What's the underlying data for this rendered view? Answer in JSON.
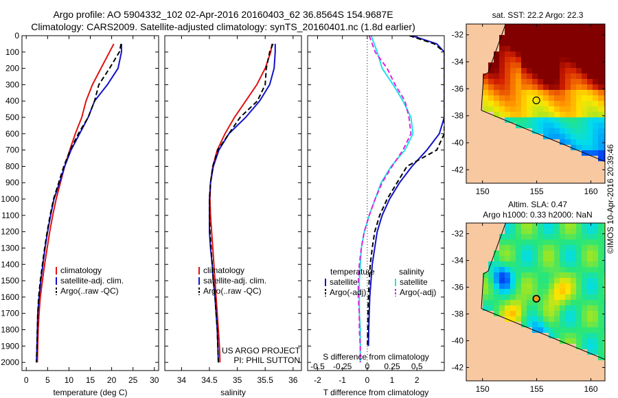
{
  "header": {
    "title_line1": "Argo profile: AO 5904332_102 02-Apr-2016 20160403_62 36.8564S 154.9687E",
    "title_line2": "Climatology: CARS2009. Satellite-adjusted climatology: synTS_20160401.nc (1.8d earlier)"
  },
  "credit": "©IMOS 10-Apr-2016 20:39:46",
  "colors": {
    "climatology": "#e01010",
    "satellite": "#1010c8",
    "argo": "#000000",
    "sal_satellite": "#20e0e8",
    "sal_argo": "#e020e0",
    "land": "#f8c8a0"
  },
  "chart_data": [
    {
      "type": "line",
      "name": "temperature-profile",
      "xlabel": "temperature (deg C)",
      "ylabel": "",
      "xlim": [
        -1,
        31
      ],
      "xticks": [
        0,
        5,
        10,
        15,
        20,
        25,
        30
      ],
      "ylim": [
        2050,
        0
      ],
      "yticks": [
        0,
        100,
        200,
        300,
        400,
        500,
        600,
        700,
        800,
        900,
        1000,
        1100,
        1200,
        1300,
        1400,
        1500,
        1600,
        1700,
        1800,
        1900,
        2000
      ],
      "legend": [
        "climatology",
        "satellite-adj. clim.",
        "Argo(..raw -QC)"
      ],
      "series": [
        {
          "name": "climatology",
          "style": "solid",
          "color": "#e01010",
          "x": [
            20.5,
            19.5,
            17.5,
            15.5,
            14.0,
            13.0,
            11.5,
            10.2,
            9.0,
            8.0,
            7.0,
            6.2,
            5.5,
            4.9,
            4.3,
            3.8,
            3.3,
            3.0,
            2.8,
            2.7,
            2.6
          ],
          "y": [
            50,
            100,
            200,
            300,
            400,
            500,
            600,
            700,
            800,
            900,
            1000,
            1100,
            1200,
            1300,
            1400,
            1500,
            1600,
            1700,
            1800,
            1900,
            2000
          ]
        },
        {
          "name": "satellite-adj. clim.",
          "style": "solid",
          "color": "#1010c8",
          "x": [
            22.3,
            22.3,
            21.5,
            19.0,
            16.0,
            14.5,
            12.5,
            10.5,
            9.0,
            7.8,
            6.5,
            5.7,
            5.0,
            4.4,
            3.9,
            3.4,
            3.0,
            2.7,
            2.6,
            2.5,
            2.4
          ],
          "y": [
            50,
            100,
            200,
            300,
            400,
            500,
            600,
            700,
            800,
            900,
            1000,
            1100,
            1200,
            1300,
            1400,
            1500,
            1600,
            1700,
            1800,
            1900,
            2000
          ]
        },
        {
          "name": "Argo(..raw -QC)",
          "style": "dashed",
          "color": "#000000",
          "x": [
            22.2,
            21.8,
            19.5,
            17.0,
            16.0,
            14.5,
            12.2,
            10.3,
            8.8,
            7.6,
            6.4,
            5.6,
            4.9,
            4.3,
            3.8,
            3.3,
            2.9,
            2.7,
            2.6,
            2.5,
            2.4
          ],
          "y": [
            50,
            100,
            200,
            300,
            400,
            500,
            600,
            700,
            800,
            900,
            1000,
            1100,
            1200,
            1300,
            1400,
            1500,
            1600,
            1700,
            1800,
            1900,
            2000
          ]
        }
      ]
    },
    {
      "type": "line",
      "name": "salinity-profile",
      "xlabel": "salinity",
      "xlim": [
        33.7,
        36.15
      ],
      "xticks": [
        34,
        34.5,
        35,
        35.5,
        36
      ],
      "ylim": [
        2050,
        0
      ],
      "legend": [
        "climatology",
        "satellite-adj. clim.",
        "Argo(..raw -QC)"
      ],
      "annotation": [
        "US ARGO PROJECT",
        "PI: PHIL SUTTON"
      ],
      "series": [
        {
          "name": "climatology",
          "style": "solid",
          "color": "#e01010",
          "x": [
            35.62,
            35.6,
            35.5,
            35.35,
            35.15,
            34.95,
            34.78,
            34.64,
            34.56,
            34.52,
            34.51,
            34.52,
            34.54,
            34.56,
            34.58,
            34.6,
            34.62,
            34.64,
            34.66,
            34.68,
            34.69
          ],
          "y": [
            50,
            100,
            200,
            300,
            400,
            500,
            600,
            700,
            800,
            900,
            1000,
            1100,
            1200,
            1300,
            1400,
            1500,
            1600,
            1700,
            1800,
            1900,
            2000
          ]
        },
        {
          "name": "satellite-adj. clim.",
          "style": "solid",
          "color": "#1010c8",
          "x": [
            35.68,
            35.68,
            35.66,
            35.58,
            35.4,
            35.15,
            34.85,
            34.67,
            34.57,
            34.52,
            34.5,
            34.5,
            34.5,
            34.52,
            34.55,
            34.57,
            34.6,
            34.62,
            34.64,
            34.65,
            34.66
          ],
          "y": [
            50,
            100,
            200,
            300,
            400,
            500,
            600,
            700,
            800,
            900,
            1000,
            1100,
            1200,
            1300,
            1400,
            1500,
            1600,
            1700,
            1800,
            1900,
            2000
          ]
        },
        {
          "name": "Argo(..raw -QC)",
          "style": "dashed",
          "color": "#000000",
          "x": [
            35.64,
            35.58,
            35.52,
            35.5,
            35.36,
            35.05,
            34.85,
            34.65,
            34.56,
            34.52,
            34.5,
            34.5,
            34.51,
            34.53,
            34.55,
            34.57,
            34.6,
            34.62,
            34.64,
            34.65,
            34.66
          ],
          "y": [
            50,
            100,
            200,
            300,
            400,
            500,
            600,
            700,
            800,
            900,
            1000,
            1100,
            1200,
            1300,
            1400,
            1500,
            1600,
            1700,
            1800,
            1900,
            2000
          ]
        }
      ]
    },
    {
      "type": "line",
      "name": "difference-profile",
      "xlabel": "T difference from climatology",
      "xlabel_top": "S difference from climatology",
      "xlim": [
        -2.4,
        3.1
      ],
      "xticks": [
        -2,
        -1,
        0,
        1,
        2
      ],
      "xticks_s": [
        -0.5,
        -0.25,
        0,
        0.25,
        0.5
      ],
      "ylim": [
        2050,
        0
      ],
      "legend_temperature_title": "temperature",
      "legend_salinity_title": "salinity",
      "legend_temperature": [
        "satellite",
        "Argo(-adj)"
      ],
      "legend_salinity": [
        "satellite",
        "Argo(-adj)"
      ],
      "series": [
        {
          "name": "temperature satellite",
          "style": "solid",
          "color": "#1010c8",
          "x": [
            1.8,
            2.8,
            3.1,
            3.1,
            3.1,
            3.1,
            3.1,
            2.9,
            2.4,
            1.8,
            1.3,
            0.9,
            0.6,
            0.4,
            0.3,
            0.2,
            0.15,
            0.1,
            0.08,
            0.06,
            0.05
          ],
          "y": [
            0,
            50,
            100,
            200,
            300,
            400,
            500,
            600,
            700,
            800,
            900,
            1000,
            1100,
            1200,
            1300,
            1400,
            1500,
            1600,
            1700,
            1800,
            1900
          ]
        },
        {
          "name": "temperature Argo(-adj)",
          "style": "dashed",
          "color": "#000000",
          "x": [
            1.7,
            2.7,
            3.1,
            3.1,
            3.1,
            3.1,
            3.1,
            3.1,
            2.8,
            1.6,
            1.2,
            0.8,
            0.5,
            0.3,
            0.2,
            0.12,
            0.08,
            0.05,
            0.03,
            0.02,
            0.01
          ],
          "y": [
            0,
            50,
            100,
            200,
            300,
            400,
            500,
            600,
            700,
            800,
            900,
            1000,
            1100,
            1200,
            1300,
            1400,
            1500,
            1600,
            1700,
            1800,
            1900
          ]
        },
        {
          "name": "salinity satellite",
          "style": "solid",
          "color": "#20e0e8",
          "x": [
            0.04,
            0.1,
            0.15,
            0.26,
            0.36,
            0.44,
            0.46,
            0.38,
            0.24,
            0.14,
            0.08,
            0.02,
            -0.03,
            -0.06,
            -0.07,
            -0.08,
            -0.08,
            -0.08,
            -0.07,
            -0.07,
            -0.07
          ],
          "y": [
            0,
            100,
            200,
            300,
            400,
            500,
            600,
            700,
            800,
            900,
            1000,
            1100,
            1200,
            1300,
            1400,
            1500,
            1600,
            1700,
            1800,
            1900,
            2000
          ]
        },
        {
          "name": "salinity Argo(-adj)",
          "style": "dashed",
          "color": "#e020e0",
          "x": [
            0.02,
            0.08,
            0.2,
            0.28,
            0.38,
            0.42,
            0.44,
            0.36,
            0.25,
            0.15,
            0.08,
            0.02,
            -0.03,
            -0.06,
            -0.08,
            -0.09,
            -0.09,
            -0.08,
            -0.08,
            -0.07,
            -0.07
          ],
          "y": [
            0,
            100,
            200,
            300,
            400,
            500,
            600,
            700,
            800,
            900,
            1000,
            1100,
            1200,
            1300,
            1400,
            1500,
            1600,
            1700,
            1800,
            1900,
            2000
          ]
        }
      ]
    },
    {
      "type": "heatmap",
      "name": "sst-map",
      "title": "sat. SST: 22.2  Argo: 22.3",
      "xlim": [
        148.5,
        161.3
      ],
      "xticks": [
        150,
        155,
        160
      ],
      "ylim": [
        -43,
        -31.2
      ],
      "yticks": [
        -32,
        -34,
        -36,
        -38,
        -40,
        -42
      ],
      "marker": {
        "lon": 154.97,
        "lat": -36.86
      }
    },
    {
      "type": "heatmap",
      "name": "sla-map",
      "title_line1": "Altim. SLA: 0.47",
      "title_line2": "Argo h1000: 0.33 h2000: NaN",
      "xlim": [
        148.5,
        161.3
      ],
      "xticks": [
        150,
        155,
        160
      ],
      "ylim": [
        -43,
        -31.2
      ],
      "yticks": [
        -32,
        -34,
        -36,
        -38,
        -40,
        -42
      ],
      "marker": {
        "lon": 154.97,
        "lat": -36.86
      }
    }
  ]
}
